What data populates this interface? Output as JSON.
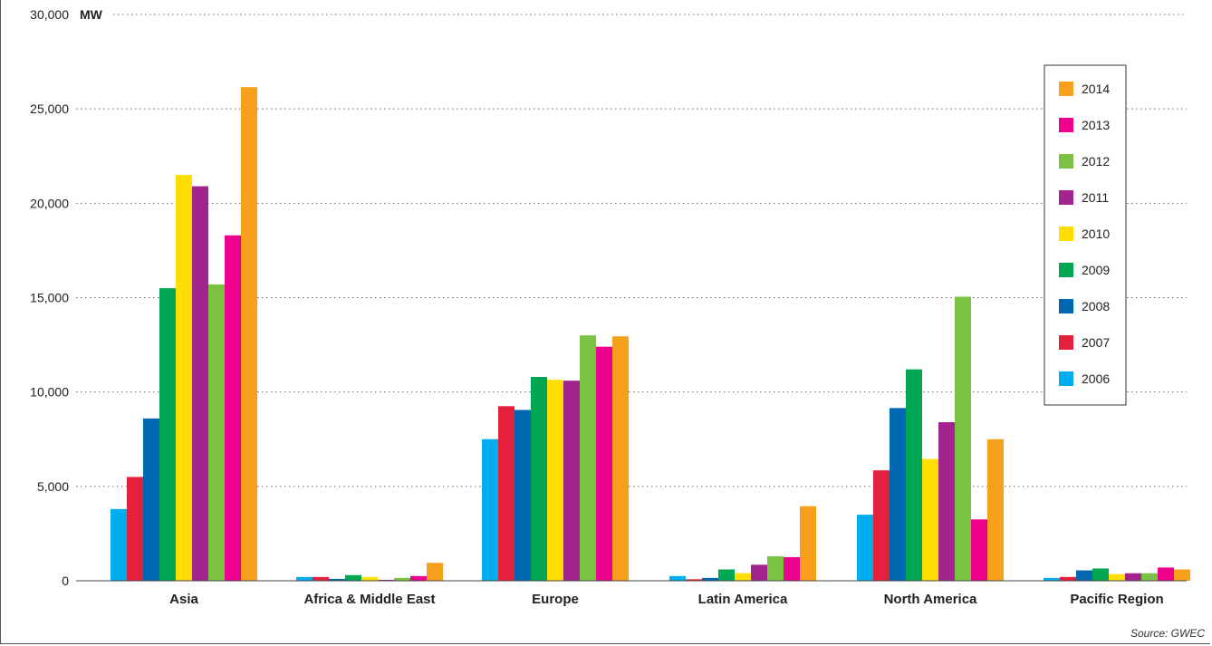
{
  "chart_data": {
    "type": "bar",
    "ylabel": "MW",
    "ylim": [
      0,
      30000
    ],
    "yticks": [
      "0",
      "5,000",
      "10,000",
      "15,000",
      "20,000",
      "25,000",
      "30,000"
    ],
    "ytick_values": [
      0,
      5000,
      10000,
      15000,
      20000,
      25000,
      30000
    ],
    "grid": "horizontal dotted",
    "legend_position": "top-right",
    "categories": [
      "Asia",
      "Africa & Middle East",
      "Europe",
      "Latin America",
      "North America",
      "Pacific Region"
    ],
    "series": [
      {
        "name": "2006",
        "color": "#00aeef",
        "values": [
          3800,
          200,
          7500,
          250,
          3500,
          150
        ]
      },
      {
        "name": "2007",
        "color": "#e4203d",
        "values": [
          5500,
          200,
          9250,
          80,
          5850,
          200
        ]
      },
      {
        "name": "2008",
        "color": "#0067b1",
        "values": [
          8600,
          100,
          9050,
          150,
          9150,
          550
        ]
      },
      {
        "name": "2009",
        "color": "#00a651",
        "values": [
          15500,
          300,
          10800,
          600,
          11200,
          650
        ]
      },
      {
        "name": "2010",
        "color": "#ffde00",
        "values": [
          21500,
          200,
          10650,
          400,
          6450,
          350
        ]
      },
      {
        "name": "2011",
        "color": "#a3238e",
        "values": [
          20900,
          50,
          10600,
          850,
          8400,
          400
        ]
      },
      {
        "name": "2012",
        "color": "#7cc242",
        "values": [
          15700,
          150,
          13000,
          1300,
          15050,
          400
        ]
      },
      {
        "name": "2013",
        "color": "#ec008c",
        "values": [
          18300,
          250,
          12400,
          1250,
          3250,
          700
        ]
      },
      {
        "name": "2014",
        "color": "#f8a01c",
        "values": [
          26150,
          950,
          12950,
          3950,
          7500,
          600
        ]
      }
    ],
    "legend_order": [
      "2014",
      "2013",
      "2012",
      "2011",
      "2010",
      "2009",
      "2008",
      "2007",
      "2006"
    ],
    "source": "Source: GWEC"
  }
}
